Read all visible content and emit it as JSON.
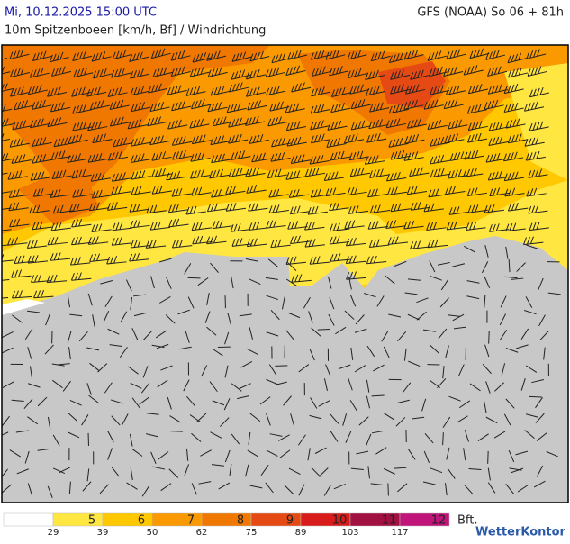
{
  "header": {
    "date": "Mi, 10.12.2025 15:00 UTC",
    "model": "GFS (NOAA) So 06 + 81h",
    "subtitle": "10m Spitzenboeen [km/h, Bf] / Windrichtung"
  },
  "legend": {
    "scale": [
      {
        "label": null,
        "color": "#ffffff"
      },
      {
        "label": "5",
        "color": "#ffe640"
      },
      {
        "label": "6",
        "color": "#ffc800"
      },
      {
        "label": "7",
        "color": "#fa9a00"
      },
      {
        "label": "8",
        "color": "#f07800"
      },
      {
        "label": "9",
        "color": "#e64a14"
      },
      {
        "label": "10",
        "color": "#d81c1c"
      },
      {
        "label": "11",
        "color": "#a01040"
      },
      {
        "label": "12",
        "color": "#c0147a"
      }
    ],
    "unit": "Bft.",
    "kmh": [
      29,
      39,
      50,
      62,
      75,
      89,
      103,
      117
    ]
  },
  "logo": "WetterKontor"
}
